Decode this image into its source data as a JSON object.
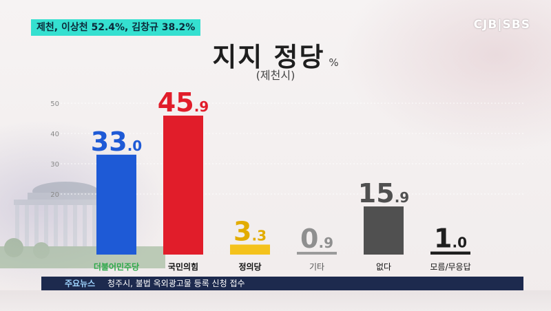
{
  "headline": "제천, 이상천 52.4%, 김창규 38.2%",
  "broadcaster_logo": "CJB|SBS",
  "title": "지지 정당",
  "title_unit": "%",
  "subtitle": "(제천시)",
  "ticker": {
    "tag": "주요뉴스",
    "text": "청주시, 불법 옥외광고물 등록 신청 접수"
  },
  "colors": {
    "headline_bg": "#35e0d0",
    "ticker_bg": "#1d2a4e"
  },
  "chart_data": {
    "type": "bar",
    "title": "지지 정당",
    "unit": "%",
    "categories": [
      "더불어민주당",
      "국민의힘",
      "정의당",
      "기타",
      "없다",
      "모름/무응답"
    ],
    "values": [
      33.0,
      45.9,
      3.3,
      0.9,
      15.9,
      1.0
    ],
    "value_labels": [
      "33.0",
      "45.9",
      "3.3",
      "0.9",
      "15.9",
      "1.0"
    ],
    "bar_colors": [
      "#1e5ad6",
      "#e11d2a",
      "#f4c21c",
      "#9a9a9a",
      "#505050",
      "#1e1e1e"
    ],
    "label_colors": [
      "#1e5ad6",
      "#e11d2a",
      "#e2ac00",
      "#8f8f8f",
      "#505050",
      "#1e1e1e"
    ],
    "category_label_colors": [
      "#2ea84a",
      "#111111",
      "#111111",
      "#555555",
      "#111111",
      "#111111"
    ],
    "yticks": [
      20,
      30,
      40,
      50
    ],
    "ylim": [
      0,
      55
    ],
    "grid": true
  }
}
